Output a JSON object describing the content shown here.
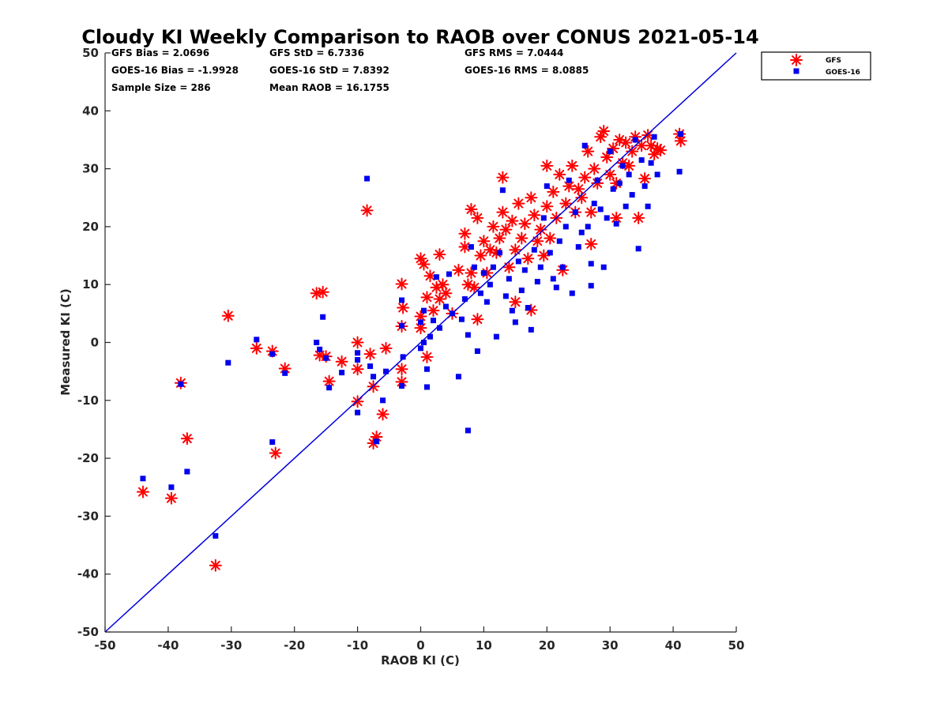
{
  "chart_data": {
    "type": "scatter",
    "title": "Cloudy KI Weekly Comparison to RAOB over CONUS 2021-05-14",
    "xlabel": "RAOB KI (C)",
    "ylabel": "Measured KI (C)",
    "xlim": [
      -50,
      50
    ],
    "ylim": [
      -50,
      50
    ],
    "xticks": [
      "-50",
      "-40",
      "-30",
      "-20",
      "-10",
      "0",
      "10",
      "20",
      "30",
      "40",
      "50"
    ],
    "yticks": [
      "50",
      "40",
      "30",
      "20",
      "10",
      "0",
      "-10",
      "-20",
      "-30",
      "-40",
      "-50"
    ],
    "grid": false,
    "legend_position": "outside top-right",
    "reference_line": {
      "type": "one-to-one",
      "color": "#0000dd"
    },
    "stats": {
      "gfs_bias": "GFS Bias = 2.0696",
      "goes_bias": "GOES-16 Bias = -1.9928",
      "sample_size": "Sample Size = 286",
      "gfs_std": "GFS StD = 6.7336",
      "goes_std": "GOES-16 StD = 7.8392",
      "mean_raob": "Mean RAOB = 16.1755",
      "gfs_rms": "GFS RMS = 7.0444",
      "goes_rms": "GOES-16 RMS = 8.0885"
    },
    "series": [
      {
        "name": "GFS",
        "marker": "asterisk",
        "color": "#ff0000",
        "points": [
          [
            -44,
            -25.8
          ],
          [
            -39.5,
            -26.9
          ],
          [
            -38,
            -7
          ],
          [
            -37,
            -16.6
          ],
          [
            -32.5,
            -38.5
          ],
          [
            -30.5,
            4.6
          ],
          [
            -26,
            -1
          ],
          [
            -23.5,
            -1.5
          ],
          [
            -23,
            -19.1
          ],
          [
            -21.5,
            -4.5
          ],
          [
            -16.5,
            8.5
          ],
          [
            -16,
            -2.2
          ],
          [
            -15.5,
            8.7
          ],
          [
            -15,
            -2.4
          ],
          [
            -14.5,
            -6.7
          ],
          [
            -12.5,
            -3.3
          ],
          [
            -10,
            0
          ],
          [
            -10,
            -4.6
          ],
          [
            -10,
            -10.2
          ],
          [
            -8.5,
            22.8
          ],
          [
            -8,
            -2
          ],
          [
            -7.5,
            -7.6
          ],
          [
            -7.5,
            -17.4
          ],
          [
            -7,
            -16.3
          ],
          [
            -6,
            -12.4
          ],
          [
            -5.5,
            -1
          ],
          [
            -3,
            10.1
          ],
          [
            -3,
            2.8
          ],
          [
            -3,
            -4.6
          ],
          [
            -3,
            -6.8
          ],
          [
            -2.8,
            6
          ],
          [
            0,
            14.5
          ],
          [
            0,
            2.5
          ],
          [
            0,
            4.5
          ],
          [
            0.5,
            13.5
          ],
          [
            1,
            7.8
          ],
          [
            1,
            -2.5
          ],
          [
            1.5,
            11.5
          ],
          [
            2,
            5.5
          ],
          [
            2.5,
            9.5
          ],
          [
            3,
            15.2
          ],
          [
            3,
            7.5
          ],
          [
            3.5,
            10
          ],
          [
            4,
            8.5
          ],
          [
            5,
            5
          ],
          [
            6,
            12.5
          ],
          [
            7,
            18.8
          ],
          [
            7,
            16.5
          ],
          [
            7.5,
            10
          ],
          [
            8,
            12
          ],
          [
            8,
            23
          ],
          [
            8.5,
            9.5
          ],
          [
            9,
            21.5
          ],
          [
            9,
            4
          ],
          [
            9.5,
            15
          ],
          [
            10,
            17.5
          ],
          [
            10.5,
            12
          ],
          [
            11,
            16
          ],
          [
            11.5,
            20
          ],
          [
            12,
            15.5
          ],
          [
            12.5,
            18
          ],
          [
            13,
            22.5
          ],
          [
            13,
            28.5
          ],
          [
            13.5,
            19.5
          ],
          [
            14,
            13
          ],
          [
            14.5,
            21
          ],
          [
            15,
            7
          ],
          [
            15,
            16
          ],
          [
            15.5,
            24
          ],
          [
            16,
            18
          ],
          [
            16.5,
            20.5
          ],
          [
            17,
            14.5
          ],
          [
            17.5,
            25
          ],
          [
            17.5,
            5.6
          ],
          [
            18,
            22
          ],
          [
            18.5,
            17.5
          ],
          [
            19,
            19.5
          ],
          [
            19.5,
            15
          ],
          [
            20,
            30.5
          ],
          [
            20,
            23.5
          ],
          [
            20.5,
            18
          ],
          [
            21,
            26
          ],
          [
            21.5,
            21.5
          ],
          [
            22,
            29
          ],
          [
            22.5,
            12.5
          ],
          [
            23,
            24
          ],
          [
            23.5,
            27
          ],
          [
            24,
            30.5
          ],
          [
            24.5,
            22.5
          ],
          [
            25,
            26.5
          ],
          [
            25.5,
            25
          ],
          [
            26,
            28.5
          ],
          [
            26.5,
            33
          ],
          [
            27,
            22.5
          ],
          [
            27,
            17
          ],
          [
            27.5,
            30
          ],
          [
            28,
            27.5
          ],
          [
            28.5,
            35.5
          ],
          [
            29,
            36.5
          ],
          [
            29.5,
            32
          ],
          [
            30,
            29
          ],
          [
            30.5,
            33.5
          ],
          [
            31,
            27.5
          ],
          [
            31,
            21.5
          ],
          [
            31.5,
            35
          ],
          [
            32,
            31
          ],
          [
            32.5,
            34.5
          ],
          [
            33,
            30.5
          ],
          [
            33.5,
            33
          ],
          [
            34,
            35.5
          ],
          [
            34.5,
            21.5
          ],
          [
            35,
            34
          ],
          [
            35.5,
            28.3
          ],
          [
            36,
            35.8
          ],
          [
            36.5,
            34
          ],
          [
            37,
            32.5
          ],
          [
            37.5,
            33.5
          ],
          [
            38,
            33.2
          ],
          [
            41,
            36
          ],
          [
            41.2,
            34.8
          ]
        ]
      },
      {
        "name": "GOES-16",
        "marker": "square",
        "color": "#0000ee",
        "points": [
          [
            -44,
            -23.5
          ],
          [
            -39.5,
            -25
          ],
          [
            -38,
            -7.2
          ],
          [
            -37,
            -22.3
          ],
          [
            -32.5,
            -33.4
          ],
          [
            -30.5,
            -3.5
          ],
          [
            -26,
            0.5
          ],
          [
            -23.5,
            -2
          ],
          [
            -23.5,
            -17.2
          ],
          [
            -21.5,
            -5.3
          ],
          [
            -16.5,
            0
          ],
          [
            -16,
            -1.2
          ],
          [
            -15.5,
            4.4
          ],
          [
            -15,
            -2.7
          ],
          [
            -14.5,
            -7.8
          ],
          [
            -12.5,
            -5.2
          ],
          [
            -10,
            -3
          ],
          [
            -10,
            -12.1
          ],
          [
            -10,
            -1.8
          ],
          [
            -8.5,
            28.3
          ],
          [
            -8,
            -4.1
          ],
          [
            -7.5,
            -5.9
          ],
          [
            -7,
            -17.1
          ],
          [
            -6,
            -10
          ],
          [
            -5.5,
            -5
          ],
          [
            -3,
            7.3
          ],
          [
            -3,
            2.9
          ],
          [
            -3,
            -7.5
          ],
          [
            -2.8,
            -2.5
          ],
          [
            0,
            3.5
          ],
          [
            0,
            -1
          ],
          [
            0.5,
            0
          ],
          [
            0.5,
            5.5
          ],
          [
            1,
            -4.6
          ],
          [
            1,
            -7.7
          ],
          [
            1.5,
            1
          ],
          [
            2,
            3.8
          ],
          [
            2.5,
            11.3
          ],
          [
            3,
            2.5
          ],
          [
            4,
            6.2
          ],
          [
            4.5,
            11.8
          ],
          [
            5,
            5
          ],
          [
            6,
            -5.9
          ],
          [
            6.5,
            4
          ],
          [
            7,
            7.5
          ],
          [
            7.5,
            -15.2
          ],
          [
            7.5,
            1.3
          ],
          [
            8,
            16.5
          ],
          [
            8.5,
            13
          ],
          [
            9,
            -1.5
          ],
          [
            9.5,
            8.5
          ],
          [
            10,
            12
          ],
          [
            10.5,
            7
          ],
          [
            11,
            10
          ],
          [
            11.5,
            13
          ],
          [
            12,
            1
          ],
          [
            12.5,
            15.5
          ],
          [
            13,
            26.3
          ],
          [
            13.5,
            8
          ],
          [
            14,
            11
          ],
          [
            14.5,
            5.5
          ],
          [
            15,
            3.5
          ],
          [
            15.5,
            14
          ],
          [
            16,
            9
          ],
          [
            16.5,
            12.5
          ],
          [
            17,
            6
          ],
          [
            17.5,
            2.2
          ],
          [
            18,
            16
          ],
          [
            18.5,
            10.5
          ],
          [
            19,
            13
          ],
          [
            19.5,
            21.5
          ],
          [
            20,
            27
          ],
          [
            20.5,
            15.5
          ],
          [
            21,
            11
          ],
          [
            21.5,
            9.5
          ],
          [
            22,
            17.5
          ],
          [
            22.5,
            13
          ],
          [
            23,
            20
          ],
          [
            23.5,
            28
          ],
          [
            24,
            8.5
          ],
          [
            24.5,
            22.5
          ],
          [
            25,
            16.5
          ],
          [
            25.5,
            19
          ],
          [
            26,
            34
          ],
          [
            26.5,
            20
          ],
          [
            27,
            9.8
          ],
          [
            27,
            13.6
          ],
          [
            27.5,
            24
          ],
          [
            28,
            28
          ],
          [
            28.5,
            23
          ],
          [
            29,
            13
          ],
          [
            29.5,
            21.5
          ],
          [
            30,
            33
          ],
          [
            30.5,
            26.5
          ],
          [
            31,
            20.5
          ],
          [
            31.5,
            27.5
          ],
          [
            32,
            30.5
          ],
          [
            32.5,
            23.5
          ],
          [
            33,
            29
          ],
          [
            33.5,
            25.5
          ],
          [
            34,
            35
          ],
          [
            34.5,
            16.2
          ],
          [
            35,
            31.5
          ],
          [
            35.5,
            27
          ],
          [
            36,
            23.5
          ],
          [
            36.5,
            31
          ],
          [
            37,
            35.5
          ],
          [
            37.5,
            29
          ],
          [
            41,
            29.5
          ],
          [
            41.2,
            36
          ]
        ]
      }
    ]
  }
}
